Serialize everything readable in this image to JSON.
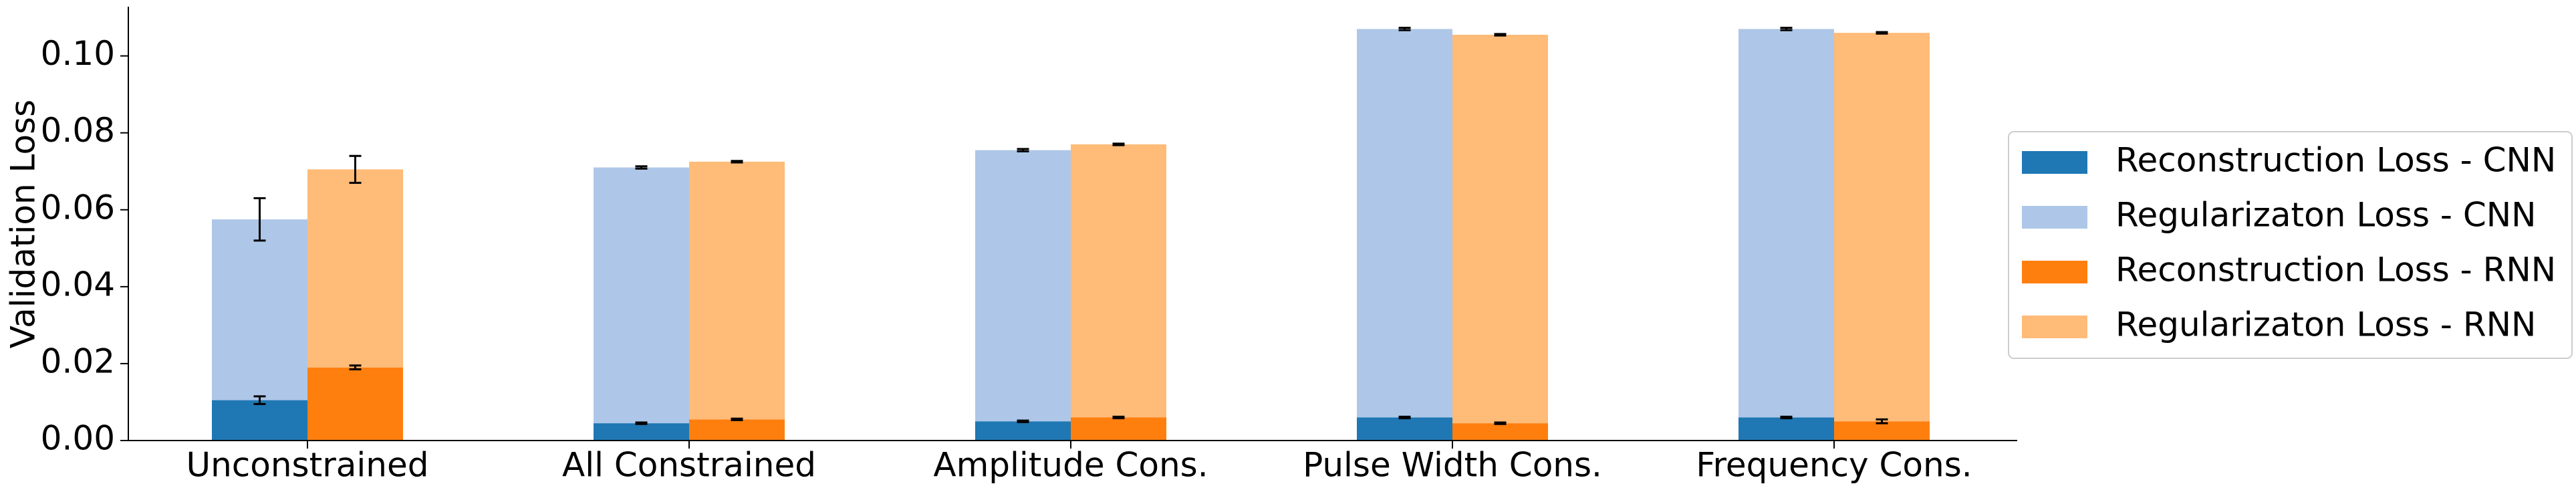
{
  "chart_data": {
    "type": "bar",
    "y_label": "Validation Loss",
    "categories": [
      "Unconstrained",
      "All Constrained",
      "Amplitude Cons.",
      "Pulse Width Cons.",
      "Frequency Cons."
    ],
    "series": [
      {
        "name": "Reconstruction Loss - CNN",
        "color": "#1f77b4",
        "values": [
          0.0105,
          0.0045,
          0.005,
          0.006,
          0.006
        ],
        "errors": [
          0.001,
          0.0002,
          0.0002,
          0.0002,
          0.0002
        ]
      },
      {
        "name": "Regularizaton Loss - CNN",
        "color": "#aec7e8",
        "values": [
          0.047,
          0.0665,
          0.0705,
          0.101,
          0.101
        ],
        "errors": [
          0.0055,
          0.0003,
          0.0003,
          0.0003,
          0.0003
        ]
      },
      {
        "name": "Reconstruction Loss - RNN",
        "color": "#ff7f0e",
        "values": [
          0.019,
          0.0055,
          0.006,
          0.0045,
          0.005
        ],
        "errors": [
          0.0005,
          0.0002,
          0.0002,
          0.0002,
          0.0005
        ]
      },
      {
        "name": "Regularizaton Loss - RNN",
        "color": "#ffbb78",
        "values": [
          0.0515,
          0.067,
          0.071,
          0.101,
          0.101
        ],
        "errors": [
          0.0035,
          0.0002,
          0.0002,
          0.0002,
          0.0002
        ]
      }
    ],
    "ylim": [
      0,
      0.1128
    ],
    "yticks": [
      {
        "value": 0,
        "label": "0.00"
      },
      {
        "value": 0.02,
        "label": "0.02"
      },
      {
        "value": 0.04,
        "label": "0.04"
      },
      {
        "value": 0.06,
        "label": "0.06"
      },
      {
        "value": 0.08,
        "label": "0.08"
      },
      {
        "value": 0.1,
        "label": "0.10"
      }
    ],
    "legend": "right"
  }
}
